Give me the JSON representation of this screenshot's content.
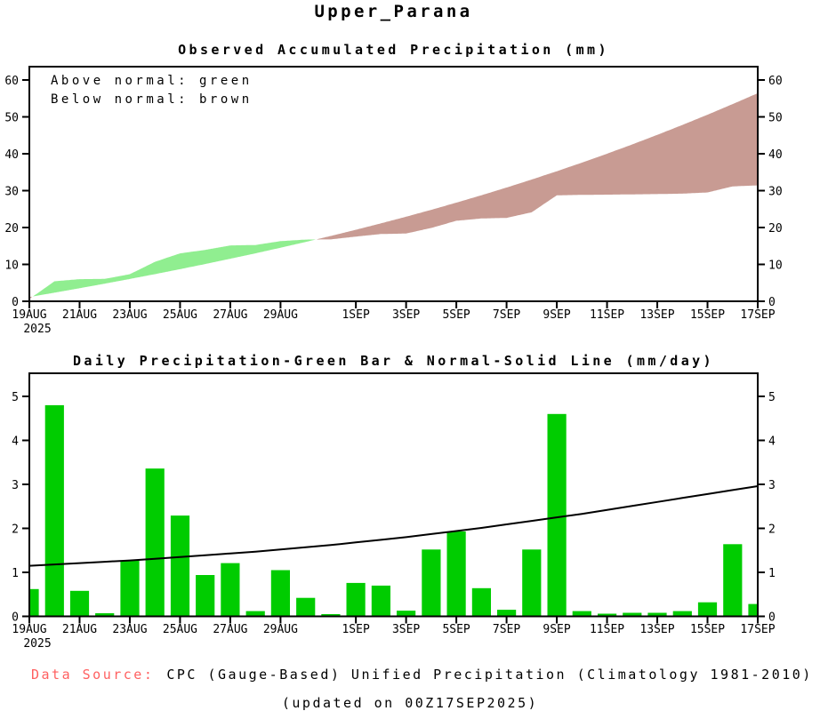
{
  "page_title": "Upper_Parana",
  "colors": {
    "above_normal_fill": "#90EE90",
    "below_normal_fill": "#C89B93",
    "bar_green": "#00CC00",
    "axis_black": "#000000",
    "footer_label_red": "#FF6060"
  },
  "footer": {
    "label": "Data Source:",
    "source": "CPC (Gauge-Based) Unified Precipitation (Climatology 1981-2010)",
    "updated": "(updated on 00Z17SEP2025)"
  },
  "chart_data": [
    {
      "type": "area",
      "title": "Observed Accumulated Precipitation (mm)",
      "legend": [
        "Above normal: green",
        "Below normal: brown"
      ],
      "ylabel": "mm",
      "ylim": [
        0,
        60
      ],
      "yticks": [
        0,
        10,
        20,
        30,
        40,
        50,
        60
      ],
      "grid": false,
      "days_total": 29,
      "x_start_date": "19AUG2025",
      "x_end_date": "17SEP2025",
      "x_tick_days": [
        0,
        2,
        4,
        6,
        8,
        10,
        13,
        15,
        17,
        19,
        21,
        23,
        25,
        27,
        29
      ],
      "x_tick_labels": [
        "19AUG",
        "21AUG",
        "23AUG",
        "25AUG",
        "27AUG",
        "29AUG",
        "1SEP",
        "3SEP",
        "5SEP",
        "7SEP",
        "9SEP",
        "11SEP",
        "13SEP",
        "15SEP",
        "17SEP"
      ],
      "x_year_label": "2025",
      "series": [
        {
          "name": "Observed accumulated (mm)",
          "values": [
            0.62,
            5.42,
            6.0,
            6.07,
            7.34,
            10.7,
            12.99,
            13.93,
            15.14,
            15.26,
            16.31,
            16.73,
            16.78,
            17.54,
            18.24,
            18.37,
            19.89,
            21.82,
            22.46,
            22.61,
            24.13,
            28.73,
            28.85,
            28.91,
            28.99,
            29.07,
            29.19,
            29.51,
            31.15,
            31.43
          ]
        },
        {
          "name": "Normal accumulated (mm)",
          "values": [
            1.15,
            2.33,
            3.54,
            4.78,
            6.05,
            7.36,
            8.71,
            10.1,
            11.53,
            13.0,
            14.52,
            16.09,
            17.71,
            19.39,
            21.13,
            22.93,
            24.8,
            26.74,
            28.75,
            30.84,
            33.01,
            35.26,
            37.59,
            40.01,
            42.52,
            45.12,
            47.81,
            50.59,
            53.46,
            56.42
          ]
        }
      ]
    },
    {
      "type": "bar",
      "title": "Daily Precipitation-Green Bar & Normal-Solid Line (mm/day)",
      "ylabel": "mm/day",
      "ylim": [
        0,
        5
      ],
      "yticks": [
        0,
        1,
        2,
        3,
        4,
        5
      ],
      "grid": false,
      "days_total": 29,
      "x_tick_days": [
        0,
        2,
        4,
        6,
        8,
        10,
        13,
        15,
        17,
        19,
        21,
        23,
        25,
        27,
        29
      ],
      "x_tick_labels": [
        "19AUG",
        "21AUG",
        "23AUG",
        "25AUG",
        "27AUG",
        "29AUG",
        "1SEP",
        "3SEP",
        "5SEP",
        "7SEP",
        "9SEP",
        "11SEP",
        "13SEP",
        "15SEP",
        "17SEP"
      ],
      "x_year_label": "2025",
      "series": [
        {
          "name": "Daily precipitation (green bar)",
          "type": "bar",
          "values": [
            0.62,
            4.8,
            0.58,
            0.07,
            1.27,
            3.36,
            2.29,
            0.94,
            1.21,
            0.12,
            1.05,
            0.42,
            0.05,
            0.76,
            0.7,
            0.13,
            1.52,
            1.93,
            0.64,
            0.15,
            1.52,
            4.6,
            0.12,
            0.06,
            0.08,
            0.08,
            0.12,
            0.32,
            1.64,
            0.28
          ]
        },
        {
          "name": "Normal (solid line)",
          "type": "line",
          "values": [
            1.15,
            1.18,
            1.21,
            1.24,
            1.27,
            1.31,
            1.35,
            1.39,
            1.43,
            1.47,
            1.52,
            1.57,
            1.62,
            1.68,
            1.74,
            1.8,
            1.87,
            1.94,
            2.01,
            2.09,
            2.17,
            2.25,
            2.33,
            2.42,
            2.51,
            2.6,
            2.69,
            2.78,
            2.87,
            2.96
          ]
        }
      ]
    }
  ]
}
